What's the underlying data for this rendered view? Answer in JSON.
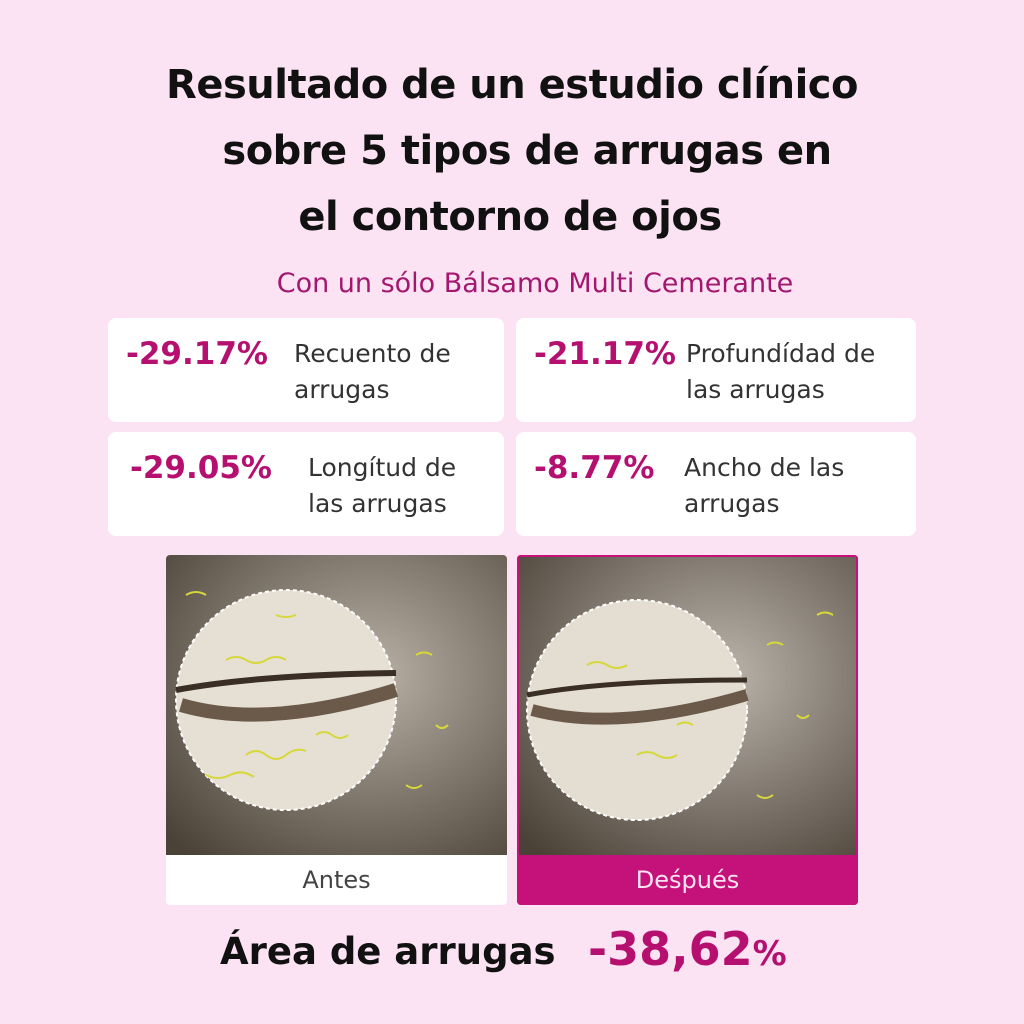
{
  "header": {
    "title_lines": [
      "Resultado de un estudio clínico",
      "sobre 5 tipos de arrugas en",
      "el contorno de ojos"
    ],
    "subtitle": "Con un sólo Bálsamo Multi Cemerante"
  },
  "stats": [
    {
      "value": "-29.17%",
      "label_lines": [
        "Recuento de",
        "arrugas"
      ]
    },
    {
      "value": "-21.17%",
      "label_lines": [
        "Profundídad de",
        "las arrugas"
      ]
    },
    {
      "value": "-29.05%",
      "label_lines": [
        "Longítud de",
        "las arrugas"
      ]
    },
    {
      "value": "-8.77%",
      "label_lines": [
        "Ancho de las",
        "arrugas"
      ]
    }
  ],
  "photos": [
    {
      "caption": "Antes"
    },
    {
      "caption": "Deśpués"
    }
  ],
  "footer": {
    "label": "Área de arrugas",
    "value": "-38,62",
    "unit": "%"
  }
}
